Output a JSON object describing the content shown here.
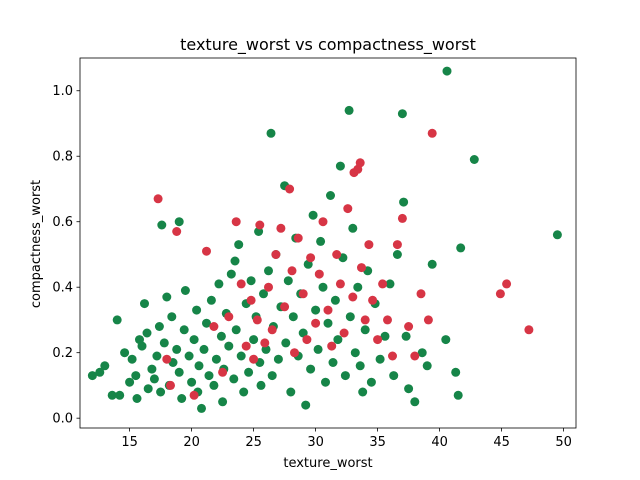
{
  "chart_data": {
    "type": "scatter",
    "title": "texture_worst vs compactness_worst",
    "xlabel": "texture_worst",
    "ylabel": "compactness_worst",
    "xlim": [
      11,
      51
    ],
    "ylim": [
      -0.03,
      1.1
    ],
    "xticks": [
      15,
      20,
      25,
      30,
      35,
      40,
      45,
      50
    ],
    "yticks": [
      0.0,
      0.2,
      0.4,
      0.6,
      0.8,
      1.0
    ],
    "xtick_labels": [
      "15",
      "20",
      "25",
      "30",
      "35",
      "40",
      "45",
      "50"
    ],
    "ytick_labels": [
      "0.0",
      "0.2",
      "0.4",
      "0.6",
      "0.8",
      "1.0"
    ],
    "grid": false,
    "colors": {
      "red": "#d73545",
      "green": "#168548"
    },
    "series": [
      {
        "color": "#168548",
        "points": [
          [
            12.0,
            0.13
          ],
          [
            12.6,
            0.14
          ],
          [
            13.0,
            0.16
          ],
          [
            13.6,
            0.07
          ],
          [
            14.2,
            0.07
          ],
          [
            14.0,
            0.3
          ],
          [
            14.6,
            0.2
          ],
          [
            15.0,
            0.11
          ],
          [
            15.5,
            0.13
          ],
          [
            15.2,
            0.18
          ],
          [
            15.8,
            0.24
          ],
          [
            15.6,
            0.06
          ],
          [
            16.0,
            0.22
          ],
          [
            16.2,
            0.35
          ],
          [
            16.5,
            0.09
          ],
          [
            16.8,
            0.15
          ],
          [
            16.4,
            0.26
          ],
          [
            17.0,
            0.12
          ],
          [
            17.2,
            0.19
          ],
          [
            17.5,
            0.08
          ],
          [
            17.4,
            0.28
          ],
          [
            17.8,
            0.23
          ],
          [
            17.6,
            0.59
          ],
          [
            18.0,
            0.37
          ],
          [
            18.2,
            0.1
          ],
          [
            18.5,
            0.17
          ],
          [
            18.4,
            0.31
          ],
          [
            18.8,
            0.21
          ],
          [
            19.0,
            0.14
          ],
          [
            19.2,
            0.06
          ],
          [
            19.0,
            0.6
          ],
          [
            19.4,
            0.27
          ],
          [
            19.5,
            0.39
          ],
          [
            19.8,
            0.19
          ],
          [
            20.0,
            0.11
          ],
          [
            20.2,
            0.24
          ],
          [
            20.4,
            0.33
          ],
          [
            20.6,
            0.16
          ],
          [
            20.8,
            0.03
          ],
          [
            20.5,
            0.08
          ],
          [
            21.0,
            0.21
          ],
          [
            21.2,
            0.29
          ],
          [
            21.4,
            0.13
          ],
          [
            21.6,
            0.36
          ],
          [
            21.8,
            0.1
          ],
          [
            22.0,
            0.18
          ],
          [
            22.2,
            0.41
          ],
          [
            22.4,
            0.25
          ],
          [
            22.5,
            0.05
          ],
          [
            22.6,
            0.15
          ],
          [
            22.8,
            0.32
          ],
          [
            23.0,
            0.22
          ],
          [
            23.2,
            0.44
          ],
          [
            23.4,
            0.12
          ],
          [
            23.5,
            0.48
          ],
          [
            23.6,
            0.27
          ],
          [
            23.8,
            0.53
          ],
          [
            24.0,
            0.19
          ],
          [
            24.2,
            0.08
          ],
          [
            24.4,
            0.35
          ],
          [
            24.6,
            0.14
          ],
          [
            24.8,
            0.42
          ],
          [
            25.0,
            0.24
          ],
          [
            25.2,
            0.31
          ],
          [
            25.4,
            0.57
          ],
          [
            25.5,
            0.17
          ],
          [
            25.6,
            0.1
          ],
          [
            25.8,
            0.38
          ],
          [
            26.0,
            0.21
          ],
          [
            26.2,
            0.45
          ],
          [
            26.4,
            0.87
          ],
          [
            26.5,
            0.13
          ],
          [
            26.6,
            0.28
          ],
          [
            26.8,
            0.5
          ],
          [
            27.0,
            0.18
          ],
          [
            27.2,
            0.34
          ],
          [
            27.5,
            0.71
          ],
          [
            27.6,
            0.23
          ],
          [
            27.8,
            0.42
          ],
          [
            28.0,
            0.08
          ],
          [
            28.2,
            0.31
          ],
          [
            28.4,
            0.55
          ],
          [
            28.6,
            0.19
          ],
          [
            28.8,
            0.38
          ],
          [
            29.0,
            0.26
          ],
          [
            29.2,
            0.04
          ],
          [
            29.4,
            0.47
          ],
          [
            29.6,
            0.15
          ],
          [
            29.8,
            0.62
          ],
          [
            30.0,
            0.33
          ],
          [
            30.2,
            0.21
          ],
          [
            30.4,
            0.54
          ],
          [
            30.6,
            0.4
          ],
          [
            30.8,
            0.11
          ],
          [
            31.0,
            0.29
          ],
          [
            31.2,
            0.68
          ],
          [
            31.4,
            0.17
          ],
          [
            31.6,
            0.36
          ],
          [
            31.8,
            0.24
          ],
          [
            32.0,
            0.77
          ],
          [
            32.2,
            0.49
          ],
          [
            32.4,
            0.13
          ],
          [
            32.7,
            0.94
          ],
          [
            32.8,
            0.31
          ],
          [
            33.0,
            0.58
          ],
          [
            33.2,
            0.2
          ],
          [
            33.4,
            0.4
          ],
          [
            33.6,
            0.16
          ],
          [
            33.8,
            0.08
          ],
          [
            34.0,
            0.27
          ],
          [
            34.2,
            0.45
          ],
          [
            34.5,
            0.11
          ],
          [
            34.8,
            0.35
          ],
          [
            35.2,
            0.18
          ],
          [
            35.6,
            0.25
          ],
          [
            36.0,
            0.41
          ],
          [
            36.3,
            0.13
          ],
          [
            36.6,
            0.5
          ],
          [
            37.0,
            0.93
          ],
          [
            37.1,
            0.66
          ],
          [
            37.3,
            0.25
          ],
          [
            37.5,
            0.09
          ],
          [
            38.0,
            0.05
          ],
          [
            38.6,
            0.2
          ],
          [
            39.0,
            0.16
          ],
          [
            39.4,
            0.47
          ],
          [
            40.5,
            0.24
          ],
          [
            40.6,
            1.06
          ],
          [
            41.3,
            0.14
          ],
          [
            41.5,
            0.07
          ],
          [
            41.7,
            0.52
          ],
          [
            42.8,
            0.79
          ],
          [
            49.5,
            0.56
          ]
        ]
      },
      {
        "color": "#d73545",
        "points": [
          [
            17.3,
            0.67
          ],
          [
            18.0,
            0.18
          ],
          [
            18.3,
            0.1
          ],
          [
            18.8,
            0.57
          ],
          [
            20.2,
            0.07
          ],
          [
            21.2,
            0.51
          ],
          [
            21.8,
            0.28
          ],
          [
            22.5,
            0.14
          ],
          [
            23.0,
            0.31
          ],
          [
            23.6,
            0.6
          ],
          [
            24.0,
            0.41
          ],
          [
            24.4,
            0.22
          ],
          [
            24.8,
            0.36
          ],
          [
            25.0,
            0.18
          ],
          [
            25.3,
            0.3
          ],
          [
            25.5,
            0.59
          ],
          [
            25.9,
            0.23
          ],
          [
            26.2,
            0.4
          ],
          [
            26.5,
            0.27
          ],
          [
            26.8,
            0.5
          ],
          [
            27.2,
            0.58
          ],
          [
            27.5,
            0.34
          ],
          [
            27.9,
            0.7
          ],
          [
            28.1,
            0.45
          ],
          [
            28.3,
            0.2
          ],
          [
            28.6,
            0.55
          ],
          [
            29.0,
            0.38
          ],
          [
            29.3,
            0.24
          ],
          [
            29.6,
            0.49
          ],
          [
            30.0,
            0.29
          ],
          [
            30.3,
            0.44
          ],
          [
            30.6,
            0.6
          ],
          [
            31.0,
            0.33
          ],
          [
            31.3,
            0.22
          ],
          [
            31.7,
            0.5
          ],
          [
            32.0,
            0.41
          ],
          [
            32.3,
            0.26
          ],
          [
            32.6,
            0.64
          ],
          [
            33.0,
            0.37
          ],
          [
            33.1,
            0.75
          ],
          [
            33.4,
            0.76
          ],
          [
            33.6,
            0.78
          ],
          [
            33.7,
            0.46
          ],
          [
            34.0,
            0.3
          ],
          [
            34.3,
            0.53
          ],
          [
            34.6,
            0.36
          ],
          [
            35.0,
            0.24
          ],
          [
            35.4,
            0.41
          ],
          [
            35.8,
            0.3
          ],
          [
            36.2,
            0.19
          ],
          [
            36.6,
            0.53
          ],
          [
            37.0,
            0.61
          ],
          [
            37.5,
            0.28
          ],
          [
            38.0,
            0.19
          ],
          [
            38.5,
            0.38
          ],
          [
            39.1,
            0.3
          ],
          [
            39.4,
            0.87
          ],
          [
            44.9,
            0.38
          ],
          [
            45.4,
            0.41
          ],
          [
            47.2,
            0.27
          ]
        ]
      }
    ]
  }
}
